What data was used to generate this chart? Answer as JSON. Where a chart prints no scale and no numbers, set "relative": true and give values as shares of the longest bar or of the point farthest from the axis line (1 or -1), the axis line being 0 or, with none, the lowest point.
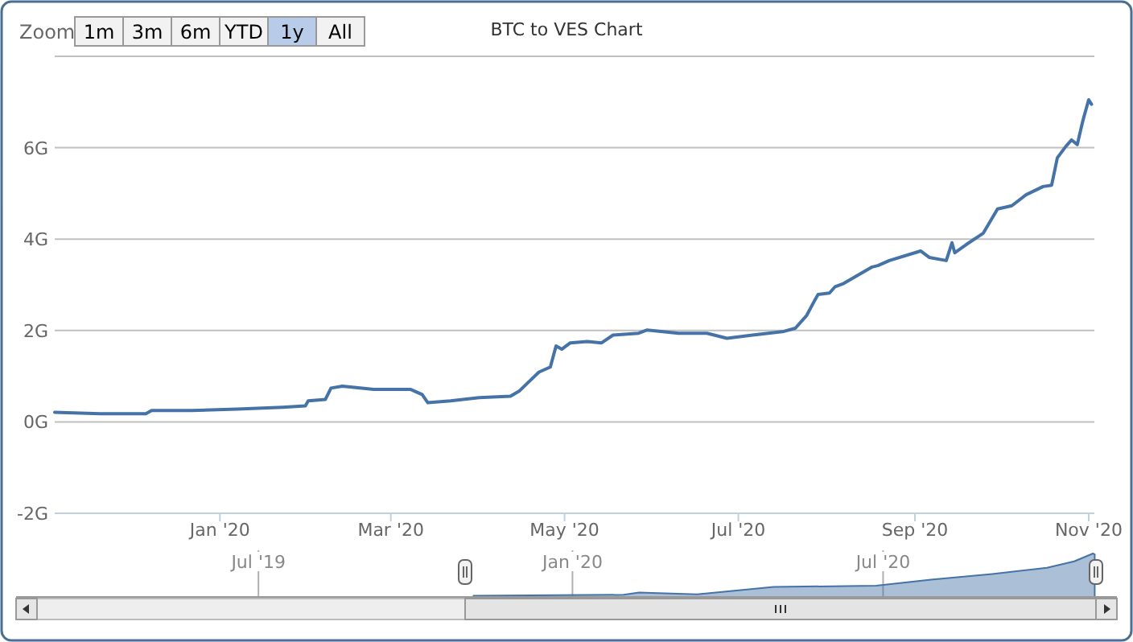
{
  "chart_data": [
    {
      "type": "line",
      "title": "BTC to VES Chart",
      "annotations": [
        "Zoom",
        "1m",
        "3m",
        "6m",
        "YTD",
        "1y",
        "All"
      ],
      "grid": "y",
      "xlim": [
        "2019-11-04",
        "2020-11-03"
      ],
      "xticks": [
        {
          "value": "2020-01-01",
          "label": "Jan '20"
        },
        {
          "value": "2020-03-01",
          "label": "Mar '20"
        },
        {
          "value": "2020-05-01",
          "label": "May '20"
        },
        {
          "value": "2020-07-01",
          "label": "Jul '20"
        },
        {
          "value": "2020-09-01",
          "label": "Sep '20"
        },
        {
          "value": "2020-11-01",
          "label": "Nov '20"
        }
      ],
      "ylim": [
        -2,
        8
      ],
      "yticks": [
        {
          "value": -2,
          "label": "-2G"
        },
        {
          "value": 0,
          "label": "0G"
        },
        {
          "value": 2,
          "label": "2G"
        },
        {
          "value": 4,
          "label": "4G"
        },
        {
          "value": 6,
          "label": "6G"
        },
        {
          "value": 8,
          "label": null
        }
      ],
      "x": [
        "2019-11-04",
        "2019-11-20",
        "2019-12-06",
        "2019-12-08",
        "2019-12-22",
        "2020-01-07",
        "2020-01-23",
        "2020-01-31",
        "2020-02-01",
        "2020-02-07",
        "2020-02-09",
        "2020-02-13",
        "2020-02-24",
        "2020-03-08",
        "2020-03-12",
        "2020-03-14",
        "2020-03-22",
        "2020-04-01",
        "2020-04-12",
        "2020-04-15",
        "2020-04-18",
        "2020-04-22",
        "2020-04-26",
        "2020-04-28",
        "2020-04-30",
        "2020-05-03",
        "2020-05-09",
        "2020-05-14",
        "2020-05-18",
        "2020-05-27",
        "2020-05-30",
        "2020-06-10",
        "2020-06-20",
        "2020-06-27",
        "2020-07-06",
        "2020-07-17",
        "2020-07-21",
        "2020-07-25",
        "2020-07-28",
        "2020-07-29",
        "2020-08-02",
        "2020-08-04",
        "2020-08-07",
        "2020-08-17",
        "2020-08-19",
        "2020-08-23",
        "2020-09-03",
        "2020-09-06",
        "2020-09-12",
        "2020-09-14",
        "2020-09-15",
        "2020-09-19",
        "2020-09-25",
        "2020-09-30",
        "2020-10-05",
        "2020-10-10",
        "2020-10-16",
        "2020-10-19",
        "2020-10-21",
        "2020-10-24",
        "2020-10-26",
        "2020-10-28",
        "2020-10-30",
        "2020-11-01",
        "2020-11-02"
      ],
      "series": [
        {
          "color": "#4572a7",
          "values": [
            0.21,
            0.18,
            0.18,
            0.25,
            0.25,
            0.28,
            0.32,
            0.35,
            0.46,
            0.49,
            0.74,
            0.78,
            0.71,
            0.71,
            0.6,
            0.42,
            0.46,
            0.53,
            0.56,
            0.67,
            0.85,
            1.09,
            1.2,
            1.66,
            1.59,
            1.73,
            1.76,
            1.73,
            1.9,
            1.94,
            2.01,
            1.94,
            1.94,
            1.83,
            1.9,
            1.98,
            2.05,
            2.33,
            2.68,
            2.79,
            2.82,
            2.96,
            3.03,
            3.39,
            3.42,
            3.53,
            3.74,
            3.6,
            3.53,
            3.92,
            3.7,
            3.88,
            4.13,
            4.66,
            4.73,
            4.97,
            5.15,
            5.18,
            5.78,
            6.03,
            6.17,
            6.07,
            6.6,
            7.05,
            6.95
          ]
        }
      ]
    },
    {
      "type": "area",
      "relative": true,
      "grid": "x",
      "xlim": [
        "2019-02-09",
        "2020-11-15"
      ],
      "xticks": [
        {
          "value": "2019-07-01",
          "label": "Jul '19"
        },
        {
          "value": "2020-01-01",
          "label": "Jan '20"
        },
        {
          "value": "2020-07-01",
          "label": "Jul '20"
        }
      ],
      "x": [
        "2019-11-04",
        "2020-01-31",
        "2020-02-09",
        "2020-03-14",
        "2020-04-28",
        "2020-06-27",
        "2020-07-29",
        "2020-09-03",
        "2020-10-05",
        "2020-10-21",
        "2020-11-01",
        "2020-11-02"
      ],
      "series": [
        {
          "color": "#4572a7",
          "values": [
            0.03,
            0.05,
            0.1,
            0.06,
            0.23,
            0.26,
            0.4,
            0.53,
            0.67,
            0.82,
            1,
            0.98
          ]
        }
      ]
    }
  ]
}
